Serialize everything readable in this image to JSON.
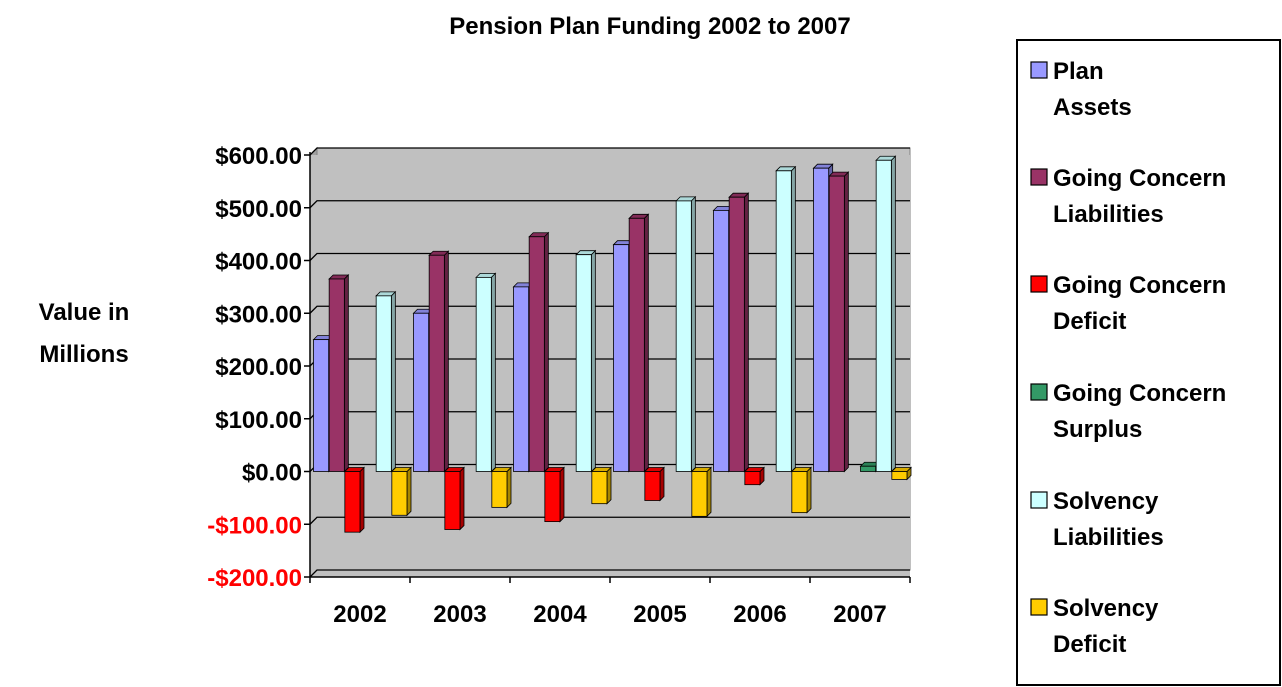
{
  "chart_data": {
    "type": "bar",
    "title": "Pension Plan Funding 2002 to 2007",
    "ylabel_lines": [
      "Value in",
      "Millions"
    ],
    "categories": [
      "2002",
      "2003",
      "2004",
      "2005",
      "2006",
      "2007"
    ],
    "ylim": [
      -200,
      600
    ],
    "yticks": [
      {
        "value": 600,
        "label": "$600.00"
      },
      {
        "value": 500,
        "label": "$500.00"
      },
      {
        "value": 400,
        "label": "$400.00"
      },
      {
        "value": 300,
        "label": "$300.00"
      },
      {
        "value": 200,
        "label": "$200.00"
      },
      {
        "value": 100,
        "label": "$100.00"
      },
      {
        "value": 0,
        "label": "$0.00"
      },
      {
        "value": -100,
        "label": "-$100.00"
      },
      {
        "value": -200,
        "label": "-$200.00"
      }
    ],
    "grid": true,
    "legend_position": "right",
    "series": [
      {
        "name": "Plan Assets",
        "color": "#9999ff",
        "values": [
          250,
          300,
          350,
          430,
          495,
          575
        ]
      },
      {
        "name": "Going Concern Liabilities",
        "color": "#993366",
        "values": [
          365,
          410,
          445,
          480,
          520,
          560
        ]
      },
      {
        "name": "Going Concern Deficit",
        "color": "#ff0000",
        "values": [
          -115,
          -110,
          -95,
          -55,
          -25,
          0
        ]
      },
      {
        "name": "Going Concern Surplus",
        "color": "#339966",
        "values": [
          0,
          0,
          0,
          0,
          0,
          10
        ]
      },
      {
        "name": "Solvency Liabilities",
        "color": "#ccffff",
        "values": [
          333,
          368,
          411,
          513,
          570,
          590
        ]
      },
      {
        "name": "Solvency Deficit",
        "color": "#ffcc00",
        "values": [
          -83,
          -68,
          -61,
          -85,
          -78,
          -15
        ]
      }
    ]
  },
  "colors": {
    "plot_background": "#c0c0c0",
    "negative_tick_label": "#ff0000",
    "positive_tick_label": "#000000"
  }
}
